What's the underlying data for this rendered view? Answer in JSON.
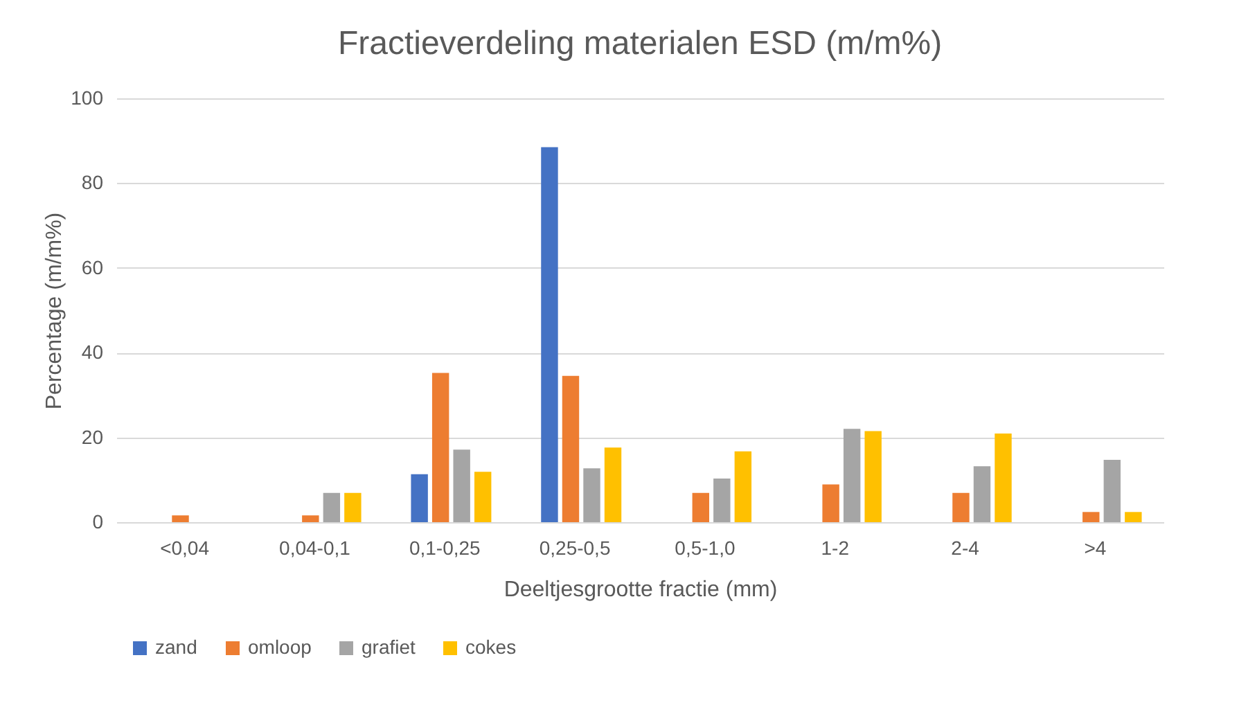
{
  "chart_data": {
    "type": "bar",
    "title": "Fractieverdeling materialen ESD (m/m%)",
    "xlabel": "Deeltjesgrootte fractie (mm)",
    "ylabel": "Percentage (m/m%)",
    "categories": [
      "<0,04",
      "0,04-0,1",
      "0,1-0,25",
      "0,25-0,5",
      "0,5-1,0",
      "1-2",
      "2-4",
      ">4"
    ],
    "series": [
      {
        "name": "zand",
        "color": "#4472c4",
        "values": [
          null,
          null,
          11.3,
          88.5,
          null,
          null,
          null,
          null
        ]
      },
      {
        "name": "omloop",
        "color": "#ed7d31",
        "values": [
          1.6,
          1.6,
          35.2,
          34.5,
          6.9,
          8.9,
          6.9,
          2.4
        ]
      },
      {
        "name": "grafiet",
        "color": "#a5a5a5",
        "values": [
          null,
          6.9,
          17.1,
          12.7,
          10.3,
          22,
          13.2,
          14.7
        ]
      },
      {
        "name": "cokes",
        "color": "#ffc000",
        "values": [
          null,
          6.9,
          11.9,
          17.6,
          16.7,
          21.5,
          20.9,
          2.4
        ]
      }
    ],
    "ylim": [
      0,
      100
    ],
    "yticks": [
      0,
      20,
      40,
      60,
      80,
      100
    ],
    "grid": "y",
    "legend": "bottom"
  }
}
